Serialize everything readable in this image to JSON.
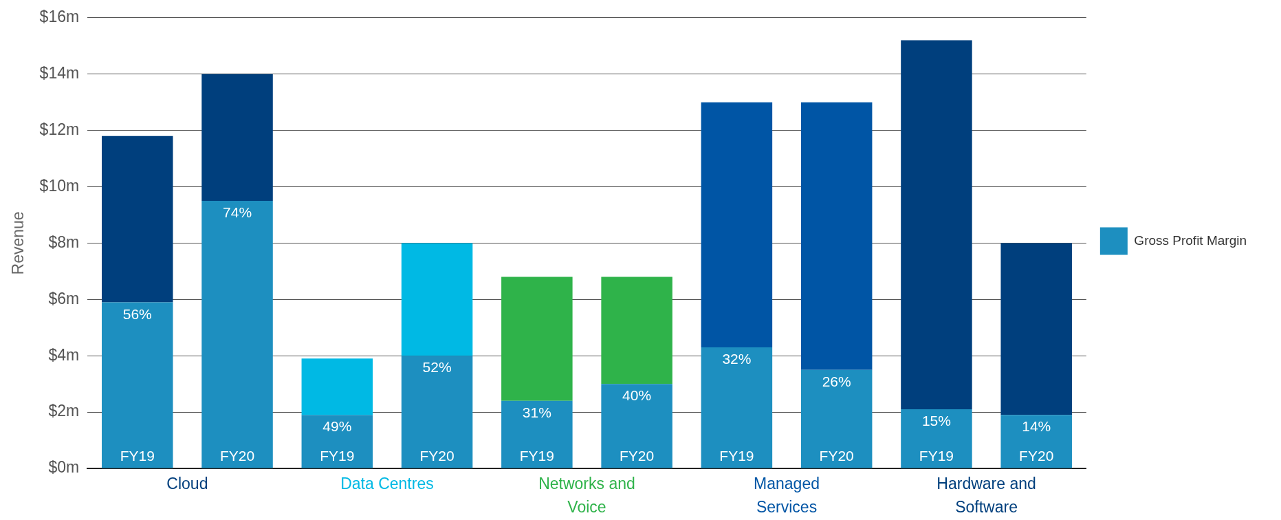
{
  "chart_data": {
    "type": "bar",
    "stacked": true,
    "ylabel": "Revenue",
    "categories": [
      "FY19",
      "FY20",
      "FY19",
      "FY20",
      "FY19",
      "FY20",
      "FY19",
      "FY20",
      "FY19",
      "FY20"
    ],
    "series": [
      {
        "name": "Gross Profit Margin",
        "color": "#1d8fc0",
        "values": [
          5.9,
          9.5,
          1.9,
          4.0,
          2.4,
          3.0,
          4.3,
          3.5,
          2.1,
          1.9
        ]
      },
      {
        "colors": [
          "#003f7d",
          "#003f7d",
          "#00b9e4",
          "#00b9e4",
          "#2fb34a",
          "#2fb34a",
          "#0055a5",
          "#0055a5",
          "#003f7d",
          "#003f7d"
        ],
        "values": [
          5.9,
          4.5,
          2.0,
          4.0,
          4.4,
          3.8,
          8.7,
          9.5,
          13.1,
          6.1
        ]
      }
    ],
    "annotations": [
      "Cloud",
      "Data Centres",
      "Networks and Voice",
      "Managed Services",
      "Hardware and Software",
      "56%",
      "74%",
      "49%",
      "52%",
      "31%",
      "40%",
      "32%",
      "26%",
      "15%",
      "14%"
    ],
    "ylim": [
      0,
      16
    ],
    "yticks": [
      {
        "value": 0,
        "label": "$0m"
      },
      {
        "value": 2,
        "label": "$2m"
      },
      {
        "value": 4,
        "label": "$4m"
      },
      {
        "value": 6,
        "label": "$6m"
      },
      {
        "value": 8,
        "label": "$8m"
      },
      {
        "value": 10,
        "label": "$10m"
      },
      {
        "value": 12,
        "label": "$12m"
      },
      {
        "value": 14,
        "label": "$14m"
      },
      {
        "value": 16,
        "label": "$16m"
      }
    ],
    "grid": "y",
    "legend": "right"
  }
}
